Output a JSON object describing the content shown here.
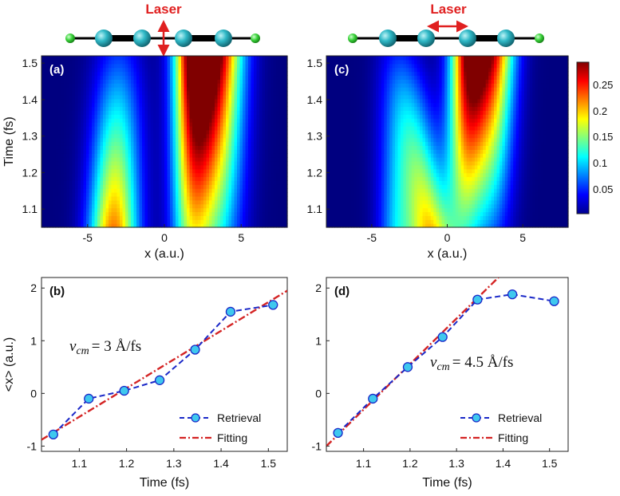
{
  "colors": {
    "laser": "#e02020",
    "retrieval_line": "#1a28c8",
    "retrieval_marker": "#3fc8ee",
    "fitting": "#d42424",
    "atom_end": "#3bd33b",
    "atom_mid": "#2ba8b8"
  },
  "molecules": [
    {
      "laser_label": "Laser",
      "laser_arrow": "vertical"
    },
    {
      "laser_label": "Laser",
      "laser_arrow": "horizontal"
    }
  ],
  "colorbar": {
    "ticks": [
      "0.25",
      "0.2",
      "0.15",
      "0.1",
      "0.05"
    ],
    "range": [
      0,
      0.29
    ],
    "colormap": "jet"
  },
  "chart_data": [
    {
      "type": "heatmap",
      "panel_label": "(a)",
      "xlabel": "x (a.u.)",
      "ylabel": "Time (fs)",
      "xlim": [
        -8,
        8
      ],
      "ylim": [
        1.05,
        1.52
      ],
      "x_ticks": [
        "-5",
        "0",
        "5"
      ],
      "y_ticks": [
        "1.1",
        "1.2",
        "1.3",
        "1.4",
        "1.5"
      ],
      "peaks": [
        {
          "x_start": -3.3,
          "x_end": -3.0,
          "width": 1.1,
          "amp_start": 0.22,
          "amp_end": 0.05
        },
        {
          "x_start": 1.7,
          "x_end": 1.9,
          "width": 0.9,
          "amp_start": 0.13,
          "amp_end": 0.25
        },
        {
          "x_start": 3.3,
          "x_end": 3.4,
          "width": 1.2,
          "amp_start": 0.11,
          "amp_end": 0.27
        }
      ]
    },
    {
      "type": "heatmap",
      "panel_label": "(c)",
      "xlabel": "x (a.u.)",
      "ylabel": "",
      "xlim": [
        -8,
        8
      ],
      "ylim": [
        1.05,
        1.52
      ],
      "x_ticks": [
        "-5",
        "0",
        "5"
      ],
      "y_ticks": [
        "1.1",
        "1.2",
        "1.3",
        "1.4",
        "1.5"
      ],
      "peaks": [
        {
          "x_start": -1.2,
          "x_end": -2.8,
          "width": 1.0,
          "amp_start": 0.19,
          "amp_end": 0.03
        },
        {
          "x_start": -3.3,
          "x_end": -3.6,
          "width": 0.9,
          "amp_start": 0.09,
          "amp_end": 0.02
        },
        {
          "x_start": 1.0,
          "x_end": 1.5,
          "width": 0.9,
          "amp_start": 0.1,
          "amp_end": 0.28
        },
        {
          "x_start": 2.8,
          "x_end": 3.1,
          "width": 1.0,
          "amp_start": 0.06,
          "amp_end": 0.22
        }
      ]
    },
    {
      "type": "line",
      "panel_label": "(b)",
      "xlabel": "Time (fs)",
      "ylabel": "<x> (a.u.)",
      "xlim": [
        1.02,
        1.54
      ],
      "ylim": [
        -1.1,
        2.2
      ],
      "x_ticks": [
        "1.1",
        "1.2",
        "1.3",
        "1.4",
        "1.5"
      ],
      "y_ticks": [
        "-1",
        "0",
        "1",
        "2"
      ],
      "annotation": {
        "v": "v",
        "sub": "cm",
        "text": "= 3 Å/fs"
      },
      "series": [
        {
          "name": "Retrieval",
          "style": "dashed-marker",
          "x": [
            1.045,
            1.12,
            1.195,
            1.27,
            1.345,
            1.42,
            1.51
          ],
          "y": [
            -0.78,
            -0.1,
            0.05,
            0.25,
            0.83,
            1.55,
            1.68
          ]
        },
        {
          "name": "Fitting",
          "style": "dashdot",
          "x": [
            1.02,
            1.54
          ],
          "y": [
            -0.88,
            1.95
          ]
        }
      ],
      "legend_position": "lower-right"
    },
    {
      "type": "line",
      "panel_label": "(d)",
      "xlabel": "Time (fs)",
      "ylabel": "",
      "xlim": [
        1.02,
        1.54
      ],
      "ylim": [
        -1.1,
        2.2
      ],
      "x_ticks": [
        "1.1",
        "1.2",
        "1.3",
        "1.4",
        "1.5"
      ],
      "y_ticks": [
        "-1",
        "0",
        "1",
        "2"
      ],
      "annotation": {
        "v": "v",
        "sub": "cm",
        "text": "= 4.5 Å/fs"
      },
      "series": [
        {
          "name": "Retrieval",
          "style": "dashed-marker",
          "x": [
            1.045,
            1.12,
            1.195,
            1.27,
            1.345,
            1.42,
            1.51
          ],
          "y": [
            -0.75,
            -0.1,
            0.5,
            1.07,
            1.78,
            1.88,
            1.75
          ]
        },
        {
          "name": "Fitting",
          "style": "dashdot",
          "x": [
            1.02,
            1.39
          ],
          "y": [
            -1.0,
            2.2
          ]
        }
      ],
      "legend_position": "lower-right"
    }
  ]
}
